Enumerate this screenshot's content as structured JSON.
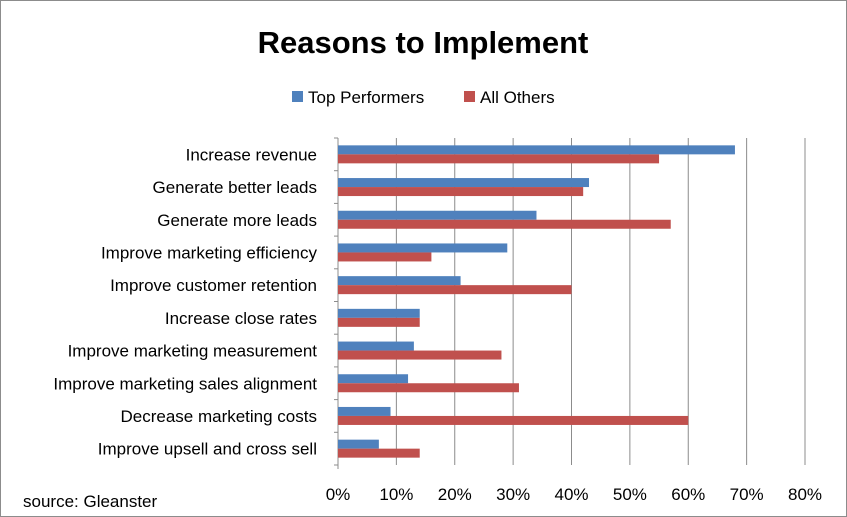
{
  "chart_data": {
    "type": "bar",
    "orientation": "horizontal",
    "title": "Reasons to Implement",
    "categories": [
      "Increase revenue",
      "Generate better leads",
      "Generate more leads",
      "Improve marketing efficiency",
      "Improve customer retention",
      "Increase close rates",
      "Improve marketing measurement",
      "Improve marketing sales alignment",
      "Decrease marketing costs",
      "Improve upsell and cross sell"
    ],
    "series": [
      {
        "name": "Top Performers",
        "color": "#4f81bd",
        "values": [
          68,
          43,
          34,
          29,
          21,
          14,
          13,
          12,
          9,
          7
        ]
      },
      {
        "name": "All Others",
        "color": "#c0504d",
        "values": [
          55,
          42,
          57,
          16,
          40,
          14,
          28,
          31,
          60,
          14
        ]
      }
    ],
    "xlim": [
      0,
      80
    ],
    "xticks": [
      0,
      10,
      20,
      30,
      40,
      50,
      60,
      70,
      80
    ],
    "xtick_labels": [
      "0%",
      "10%",
      "20%",
      "30%",
      "40%",
      "50%",
      "60%",
      "70%",
      "80%"
    ],
    "grid": true,
    "legend_position": "top",
    "source": "source: Gleanster"
  }
}
